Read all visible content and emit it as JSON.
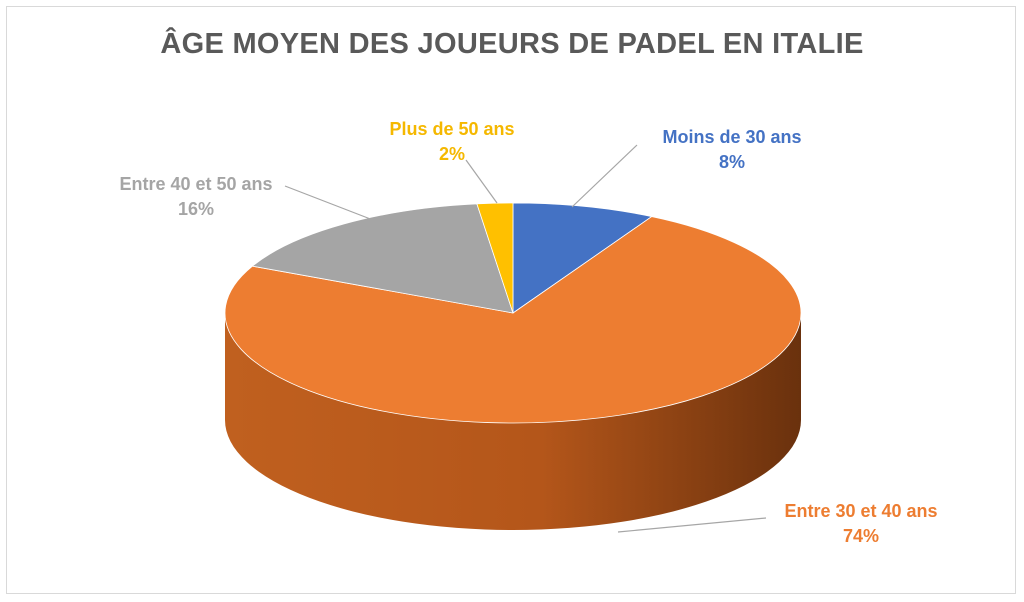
{
  "chart_data": {
    "type": "pie",
    "title": "ÂGE MOYEN DES JOUEURS DE PADEL EN ITALIE",
    "slices": [
      {
        "label": "Moins de 30 ans",
        "value": 8,
        "value_label": "8%",
        "color": "#4472c4"
      },
      {
        "label": "Entre 30 et 40 ans",
        "value": 74,
        "value_label": "74%",
        "color": "#ed7d31"
      },
      {
        "label": "Entre 40 et 50 ans",
        "value": 16,
        "value_label": "16%",
        "color": "#a5a5a5"
      },
      {
        "label": "Plus de 50 ans",
        "value": 2,
        "value_label": "2%",
        "color": "#ffc000"
      }
    ],
    "legend": "none",
    "style": "3d"
  }
}
